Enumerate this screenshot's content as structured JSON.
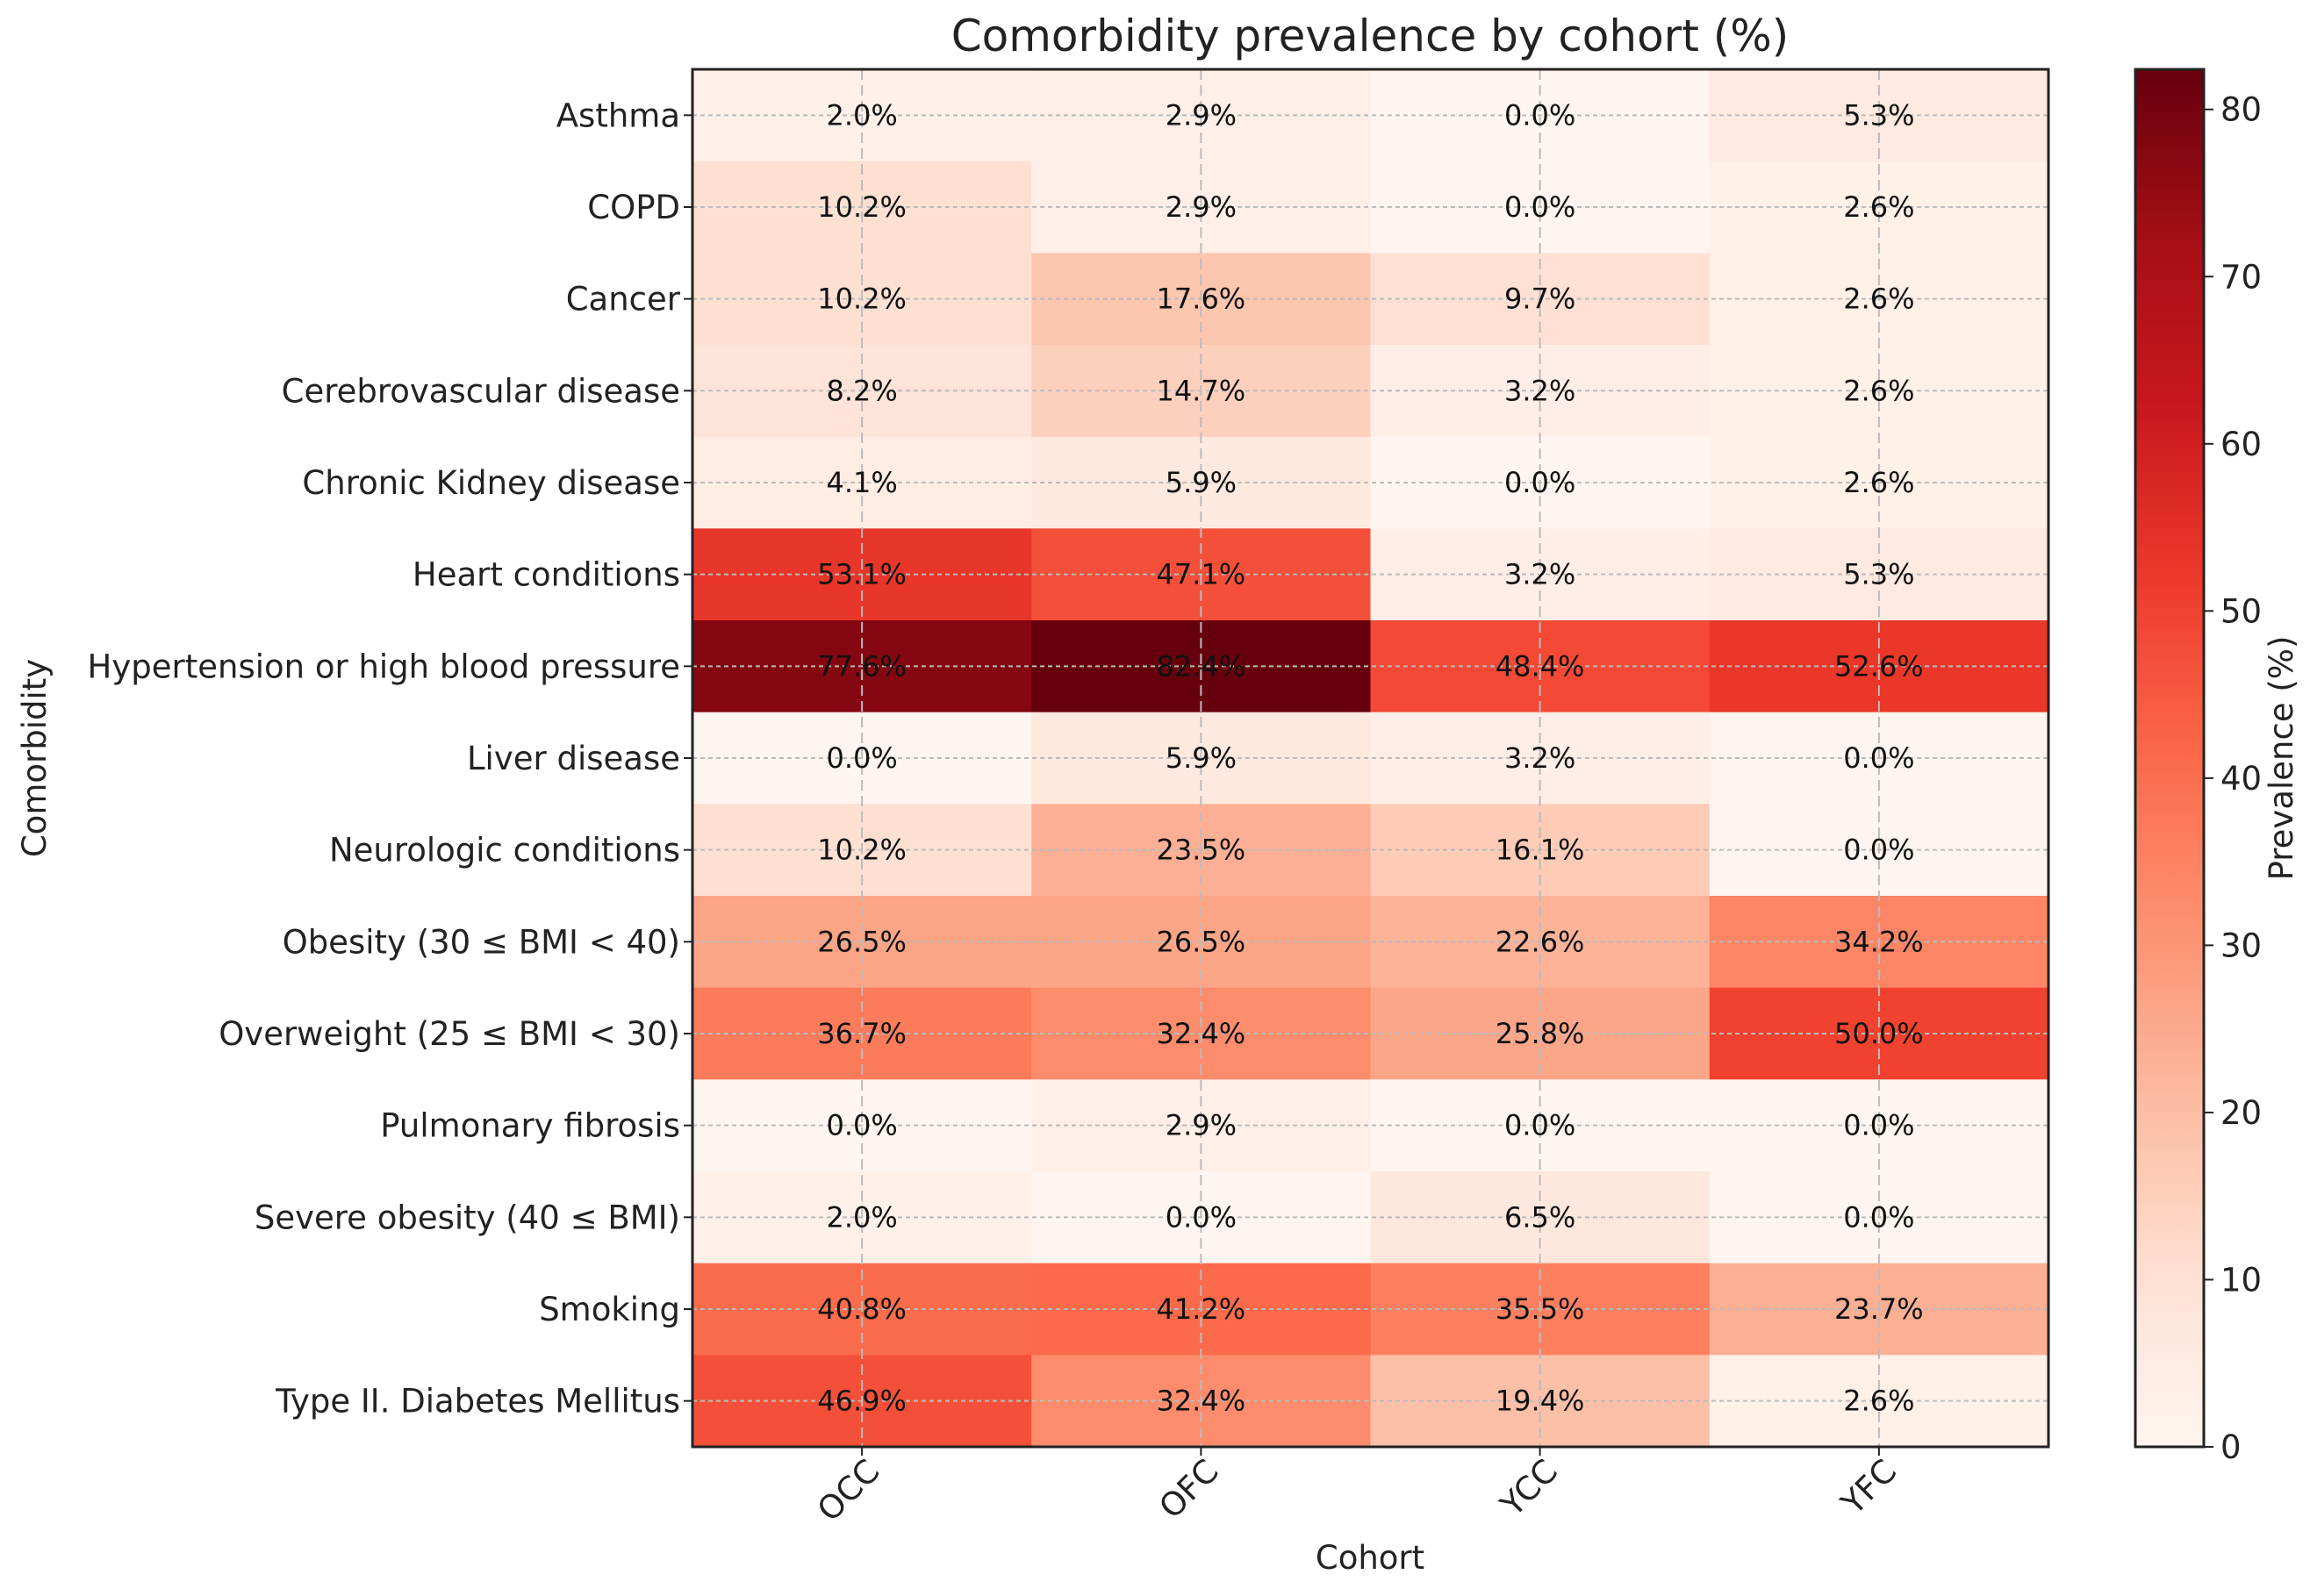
{
  "chart_data": {
    "type": "heatmap",
    "title": "Comorbidity prevalence by cohort (%)",
    "xlabel": "Cohort",
    "ylabel": "Comorbidity",
    "colorbar_label": "Prevalence (%)",
    "colorbar_ticks": [
      0,
      10,
      20,
      30,
      40,
      50,
      60,
      70,
      80
    ],
    "colorbar_range": [
      0,
      82.4
    ],
    "colormap": "Reds",
    "grid": true,
    "x": [
      "OCC",
      "OFC",
      "YCC",
      "YFC"
    ],
    "y": [
      "Asthma",
      "COPD",
      "Cancer",
      "Cerebrovascular disease",
      "Chronic Kidney disease",
      "Heart conditions",
      "Hypertension or high blood pressure",
      "Liver disease",
      "Neurologic conditions",
      "Obesity (30 ≤ BMI < 40)",
      "Overweight (25 ≤ BMI < 30)",
      "Pulmonary fibrosis",
      "Severe obesity (40 ≤ BMI)",
      "Smoking",
      "Type II. Diabetes Mellitus"
    ],
    "values": [
      [
        2.0,
        2.9,
        0.0,
        5.3
      ],
      [
        10.2,
        2.9,
        0.0,
        2.6
      ],
      [
        10.2,
        17.6,
        9.7,
        2.6
      ],
      [
        8.2,
        14.7,
        3.2,
        2.6
      ],
      [
        4.1,
        5.9,
        0.0,
        2.6
      ],
      [
        53.1,
        47.1,
        3.2,
        5.3
      ],
      [
        77.6,
        82.4,
        48.4,
        52.6
      ],
      [
        0.0,
        5.9,
        3.2,
        0.0
      ],
      [
        10.2,
        23.5,
        16.1,
        0.0
      ],
      [
        26.5,
        26.5,
        22.6,
        34.2
      ],
      [
        36.7,
        32.4,
        25.8,
        50.0
      ],
      [
        0.0,
        2.9,
        0.0,
        0.0
      ],
      [
        2.0,
        0.0,
        6.5,
        0.0
      ],
      [
        40.8,
        41.2,
        35.5,
        23.7
      ],
      [
        46.9,
        32.4,
        19.4,
        2.6
      ]
    ],
    "value_format_suffix": "%"
  }
}
